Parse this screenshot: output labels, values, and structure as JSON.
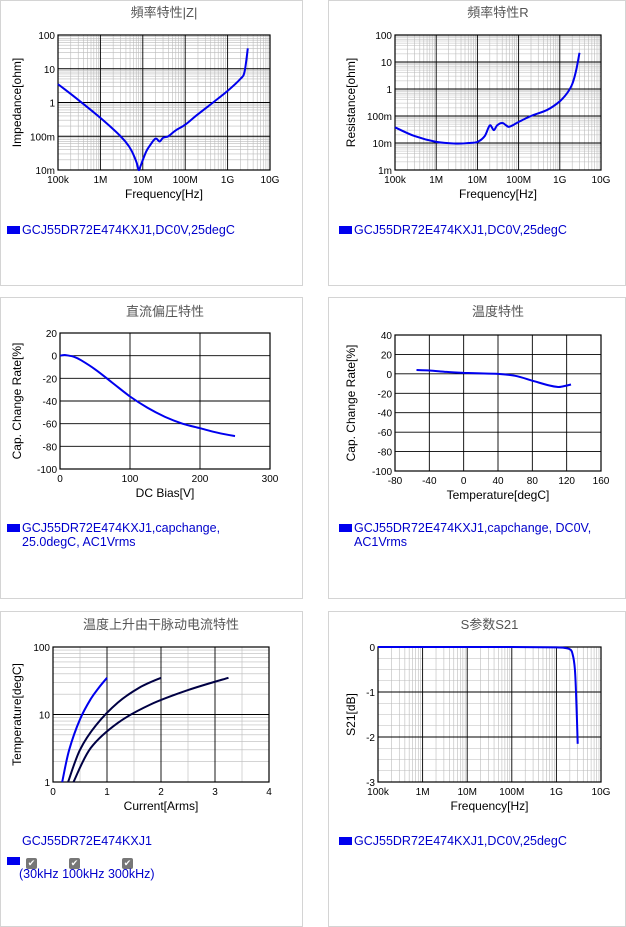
{
  "colors": {
    "curve": "#0000ee",
    "curve_dark": "#000044",
    "grid_major": "#000000",
    "grid_minor": "#bbbbbb",
    "legend_text": "#0000cc"
  },
  "legends": {
    "p1": "GCJ55DR72E474KXJ1,DC0V,25degC",
    "p2": "GCJ55DR72E474KXJ1,DC0V,25degC",
    "p3": [
      "GCJ55DR72E474KXJ1,capchange,",
      "25.0degC, AC1Vrms"
    ],
    "p4": [
      "GCJ55DR72E474KXJ1,capchange, DC0V,",
      "AC1Vrms"
    ],
    "p5": "GCJ55DR72E474KXJ1",
    "p5_freqs": [
      "30kHz",
      "100kHz",
      "300kHz"
    ],
    "p6": "GCJ55DR72E474KXJ1,DC0V,25degC"
  },
  "chart_data": [
    {
      "type": "line",
      "title": "頻率特性|Z|",
      "xlabel": "Frequency[Hz]",
      "ylabel": "Impedance[ohm]",
      "xscale": "log",
      "yscale": "log",
      "xlim": [
        100000,
        10000000000
      ],
      "ylim": [
        0.01,
        100
      ],
      "xticks": [
        "100k",
        "1M",
        "10M",
        "100M",
        "1G",
        "10G"
      ],
      "yticks": [
        "10m",
        "100m",
        "1",
        "10",
        "100"
      ],
      "series": [
        {
          "x": [
            100000,
            300000,
            1000000,
            3000000,
            5000000,
            7000000,
            8000000,
            9000000,
            12000000,
            15000000,
            20000000,
            25000000,
            30000000,
            40000000,
            60000000,
            100000000,
            200000000,
            500000000,
            1000000000,
            2000000000,
            2500000000,
            3000000000
          ],
          "y": [
            3.5,
            1.2,
            0.35,
            0.1,
            0.045,
            0.018,
            0.01,
            0.014,
            0.035,
            0.055,
            0.085,
            0.07,
            0.09,
            0.1,
            0.15,
            0.22,
            0.45,
            1.1,
            2.2,
            5,
            8,
            40
          ]
        }
      ]
    },
    {
      "type": "line",
      "title": "頻率特性R",
      "xlabel": "Frequency[Hz]",
      "ylabel": "Resistance[ohm]",
      "xscale": "log",
      "yscale": "log",
      "xlim": [
        100000,
        10000000000
      ],
      "ylim": [
        0.001,
        100
      ],
      "xticks": [
        "100k",
        "1M",
        "10M",
        "100M",
        "1G",
        "10G"
      ],
      "yticks": [
        "1m",
        "10m",
        "100m",
        "1",
        "10",
        "100"
      ],
      "series": [
        {
          "x": [
            100000,
            300000,
            1000000,
            3000000,
            6000000,
            10000000,
            15000000,
            20000000,
            25000000,
            30000000,
            40000000,
            50000000,
            60000000,
            100000000,
            200000000,
            500000000,
            1000000000,
            1500000000,
            2000000000,
            2500000000,
            3000000000
          ],
          "y": [
            0.038,
            0.018,
            0.011,
            0.0095,
            0.01,
            0.011,
            0.018,
            0.045,
            0.03,
            0.045,
            0.055,
            0.045,
            0.04,
            0.06,
            0.1,
            0.17,
            0.35,
            0.7,
            1.5,
            5,
            22
          ]
        }
      ]
    },
    {
      "type": "line",
      "title": "直流偏圧特性",
      "xlabel": "DC Bias[V]",
      "ylabel": "Cap. Change Rate[%]",
      "xlim": [
        0,
        300
      ],
      "ylim": [
        -100,
        20
      ],
      "xticks": [
        "0",
        "100",
        "200",
        "300"
      ],
      "yticks": [
        "20",
        "0",
        "-20",
        "-40",
        "-60",
        "-80",
        "-100"
      ],
      "series": [
        {
          "x": [
            0,
            5,
            10,
            20,
            30,
            50,
            75,
            100,
            125,
            150,
            175,
            200,
            225,
            250
          ],
          "y": [
            0,
            0.5,
            0.3,
            -1,
            -4,
            -12,
            -24,
            -36,
            -46,
            -54,
            -60,
            -64,
            -68,
            -71
          ]
        }
      ]
    },
    {
      "type": "line",
      "title": "温度特性",
      "xlabel": "Temperature[degC]",
      "ylabel": "Cap. Change Rate[%]",
      "xlim": [
        -80,
        160
      ],
      "ylim": [
        -100,
        40
      ],
      "xticks": [
        "-80",
        "-40",
        "0",
        "40",
        "80",
        "120",
        "160"
      ],
      "yticks": [
        "40",
        "20",
        "0",
        "-20",
        "-40",
        "-60",
        "-80",
        "-100"
      ],
      "series": [
        {
          "x": [
            -55,
            -40,
            -20,
            0,
            20,
            40,
            60,
            80,
            100,
            110,
            115,
            125
          ],
          "y": [
            4,
            3.5,
            2,
            1,
            0.5,
            0,
            -2,
            -7,
            -12,
            -13.5,
            -13,
            -11
          ]
        }
      ]
    },
    {
      "type": "line",
      "title": "温度上升由干脉动电流特性",
      "xlabel": "Current[Arms]",
      "ylabel": "Temperature[degC]",
      "xlim": [
        0,
        4
      ],
      "ylim": [
        1,
        100
      ],
      "yscale": "log",
      "xticks": [
        "0",
        "1",
        "2",
        "3",
        "4"
      ],
      "yticks": [
        "1",
        "10",
        "100"
      ],
      "series": [
        {
          "name": "30kHz",
          "x": [
            0.17,
            0.3,
            0.5,
            0.7,
            0.85,
            1.0
          ],
          "y": [
            1,
            3,
            8.5,
            17,
            25,
            35
          ]
        },
        {
          "name": "100kHz",
          "x": [
            0.28,
            0.5,
            0.8,
            1.2,
            1.6,
            2.0
          ],
          "y": [
            1,
            3,
            7,
            15,
            25,
            35
          ]
        },
        {
          "name": "300kHz",
          "x": [
            0.38,
            0.7,
            1.2,
            1.8,
            2.5,
            3.25
          ],
          "y": [
            1,
            3.2,
            7.5,
            14,
            23,
            35
          ]
        }
      ]
    },
    {
      "type": "line",
      "title": "S参数S21",
      "xlabel": "Frequency[Hz]",
      "ylabel": "S21[dB]",
      "xscale": "log",
      "xlim": [
        100000,
        10000000000
      ],
      "ylim": [
        -3,
        0
      ],
      "xticks": [
        "100k",
        "1M",
        "10M",
        "100M",
        "1G",
        "10G"
      ],
      "yticks": [
        "0",
        "-1",
        "-2",
        "-3"
      ],
      "series": [
        {
          "x": [
            100000,
            1000000,
            100000000,
            1000000000,
            1500000000,
            2000000000,
            2300000000,
            2600000000,
            2800000000,
            3000000000
          ],
          "y": [
            0,
            0,
            0,
            -0.01,
            -0.02,
            -0.05,
            -0.15,
            -0.5,
            -1.2,
            -2.15
          ]
        }
      ]
    }
  ]
}
